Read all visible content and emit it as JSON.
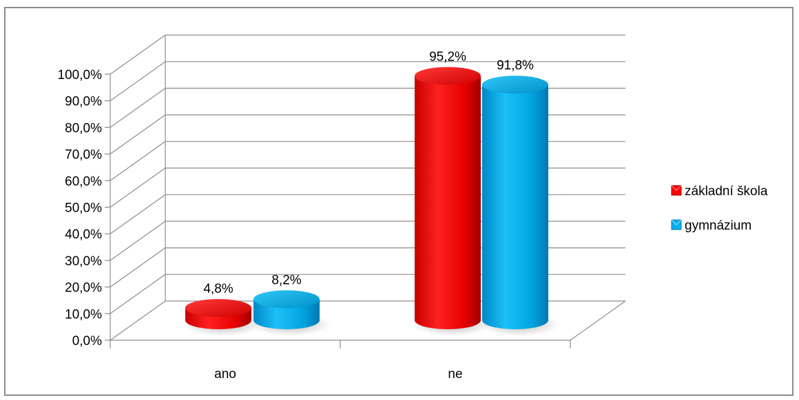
{
  "chart_data": {
    "type": "bar",
    "style": "3d-cylinder",
    "categories": [
      "ano",
      "ne"
    ],
    "series": [
      {
        "name": "základní škola",
        "values": [
          4.8,
          95.2
        ],
        "labels": [
          "4,8%",
          "95,2%"
        ],
        "color": "#ff0000"
      },
      {
        "name": "gymnázium",
        "values": [
          8.2,
          91.8
        ],
        "labels": [
          "8,2%",
          "91,8%"
        ],
        "color": "#00b0f0"
      }
    ],
    "y_ticks": [
      "0,0%",
      "10,0%",
      "20,0%",
      "30,0%",
      "40,0%",
      "50,0%",
      "60,0%",
      "70,0%",
      "80,0%",
      "90,0%",
      "100,0%"
    ],
    "ylim": [
      0,
      100
    ],
    "grid": true,
    "legend_position": "right"
  }
}
